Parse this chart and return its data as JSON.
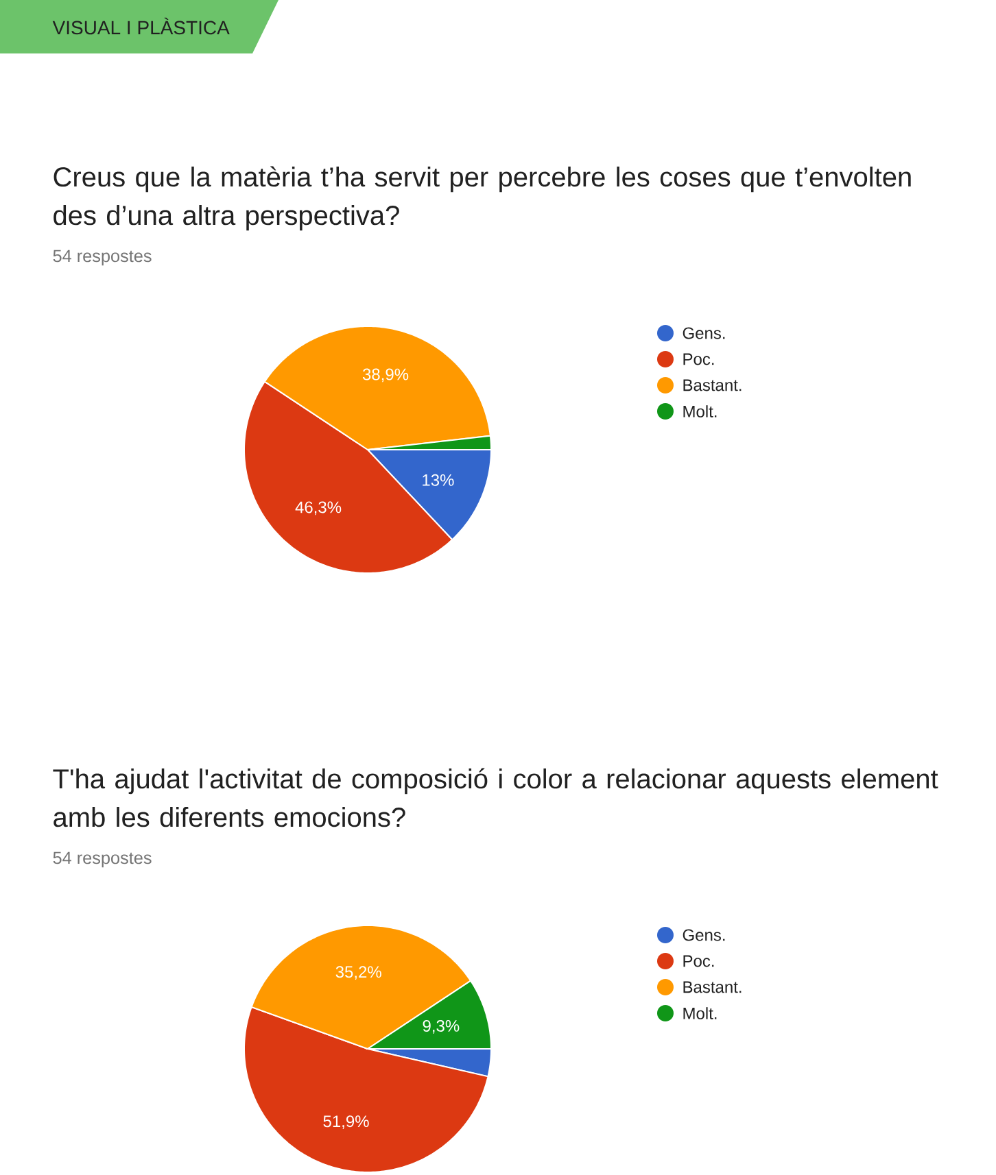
{
  "chart_data": [
    {
      "type": "pie",
      "title": "Creus que la matèria t’ha servit per percebre les coses que t’envolten des d’una altra perspectiva?",
      "subtitle": "54 respostes",
      "annotations": [
        "VISUAL I PLÀSTICA"
      ],
      "categories": [
        "Gens.",
        "Poc.",
        "Bastant.",
        "Molt."
      ],
      "values": [
        13,
        46.3,
        38.9,
        1.8
      ],
      "colors": [
        "#3366cc",
        "#dc3912",
        "#ff9900",
        "#109618"
      ],
      "value_labels": [
        "13%",
        "46,3%",
        "38,9%",
        null
      ],
      "legend": "right"
    },
    {
      "type": "pie",
      "title": "T'ha ajudat l'activitat de composició i color a relacionar aquests element amb les diferents emocions?",
      "subtitle": "54 respostes",
      "categories": [
        "Gens.",
        "Poc.",
        "Bastant.",
        "Molt."
      ],
      "values": [
        3.6,
        51.9,
        35.2,
        9.3
      ],
      "colors": [
        "#3366cc",
        "#dc3912",
        "#ff9900",
        "#109618"
      ],
      "value_labels": [
        null,
        "51,9%",
        "35,2%",
        "9,3%"
      ],
      "legend": "right"
    }
  ]
}
